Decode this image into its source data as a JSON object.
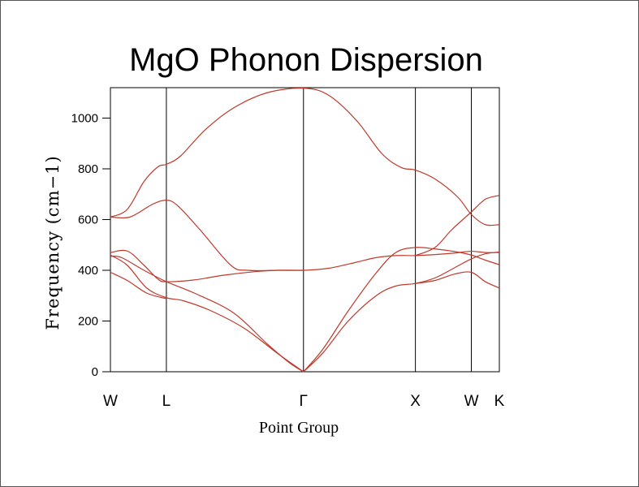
{
  "chart_data": {
    "type": "line",
    "title": "MgO Phonon Dispersion",
    "xlabel": "Point Group",
    "ylabel": "Frequency (cm−1)",
    "ylim": [
      0,
      1120
    ],
    "yticks": [
      "0",
      "200",
      "400",
      "600",
      "800",
      "1000"
    ],
    "ytick_values": [
      0,
      200,
      400,
      600,
      800,
      1000
    ],
    "grid": false,
    "line_color": "#c0392b",
    "high_symmetry_points": [
      {
        "label": "W",
        "x": 0.0
      },
      {
        "label": "L",
        "x": 1.0
      },
      {
        "label": "Γ",
        "x": 3.45
      },
      {
        "label": "X",
        "x": 5.45
      },
      {
        "label": "W",
        "x": 6.45
      },
      {
        "label": "K",
        "x": 6.95
      }
    ],
    "series": [
      {
        "values": [
          [
            0.0,
            610
          ],
          [
            0.3,
            640
          ],
          [
            0.6,
            750
          ],
          [
            0.85,
            808
          ],
          [
            1.0,
            818
          ],
          [
            1.25,
            850
          ],
          [
            1.7,
            955
          ],
          [
            2.2,
            1040
          ],
          [
            2.8,
            1100
          ],
          [
            3.45,
            1118
          ],
          [
            3.9,
            1090
          ],
          [
            4.4,
            990
          ],
          [
            4.85,
            860
          ],
          [
            5.2,
            805
          ],
          [
            5.45,
            795
          ],
          [
            5.8,
            760
          ],
          [
            6.2,
            690
          ],
          [
            6.45,
            620
          ],
          [
            6.7,
            580
          ],
          [
            6.95,
            580
          ]
        ]
      },
      {
        "values": [
          [
            0.0,
            610
          ],
          [
            0.35,
            610
          ],
          [
            0.75,
            660
          ],
          [
            1.0,
            676
          ],
          [
            1.2,
            655
          ],
          [
            1.6,
            560
          ],
          [
            2.15,
            420
          ],
          [
            2.45,
            400
          ],
          [
            3.0,
            400
          ],
          [
            3.45,
            400
          ],
          [
            3.9,
            408
          ],
          [
            4.4,
            432
          ],
          [
            4.75,
            450
          ],
          [
            5.1,
            458
          ],
          [
            5.45,
            458
          ],
          [
            5.8,
            462
          ],
          [
            6.15,
            468
          ],
          [
            6.45,
            475
          ],
          [
            6.7,
            470
          ],
          [
            6.95,
            470
          ]
        ]
      },
      {
        "values": [
          [
            0.0,
            470
          ],
          [
            0.3,
            476
          ],
          [
            0.6,
            420
          ],
          [
            0.85,
            365
          ],
          [
            1.0,
            355
          ],
          [
            1.5,
            362
          ],
          [
            2.0,
            380
          ],
          [
            2.6,
            395
          ],
          [
            3.0,
            400
          ],
          [
            3.45,
            400
          ]
        ]
      },
      {
        "values": [
          [
            0.0,
            455
          ],
          [
            0.2,
            450
          ],
          [
            0.6,
            400
          ],
          [
            1.0,
            355
          ],
          [
            1.5,
            310
          ],
          [
            2.2,
            232
          ],
          [
            2.8,
            110
          ],
          [
            3.2,
            35
          ],
          [
            3.45,
            0
          ]
        ]
      },
      {
        "values": [
          [
            0.0,
            460
          ],
          [
            0.3,
            420
          ],
          [
            0.65,
            330
          ],
          [
            1.0,
            292
          ],
          [
            1.3,
            280
          ],
          [
            1.8,
            240
          ],
          [
            2.4,
            170
          ],
          [
            3.0,
            70
          ],
          [
            3.45,
            0
          ]
        ]
      },
      {
        "values": [
          [
            0.0,
            392
          ],
          [
            0.3,
            360
          ],
          [
            0.65,
            310
          ],
          [
            1.0,
            288
          ]
        ]
      },
      {
        "values": [
          [
            3.45,
            0
          ],
          [
            3.8,
            75
          ],
          [
            4.25,
            200
          ],
          [
            4.75,
            300
          ],
          [
            5.1,
            338
          ],
          [
            5.45,
            348
          ],
          [
            5.8,
            370
          ],
          [
            6.15,
            410
          ],
          [
            6.45,
            445
          ],
          [
            6.7,
            465
          ],
          [
            6.95,
            472
          ]
        ]
      },
      {
        "values": [
          [
            3.45,
            0
          ],
          [
            3.8,
            90
          ],
          [
            4.25,
            240
          ],
          [
            4.75,
            390
          ],
          [
            5.1,
            470
          ],
          [
            5.45,
            490
          ],
          [
            5.8,
            484
          ],
          [
            6.15,
            474
          ],
          [
            6.45,
            460
          ],
          [
            6.7,
            440
          ],
          [
            6.95,
            422
          ]
        ]
      },
      {
        "values": [
          [
            5.45,
            348
          ],
          [
            5.8,
            360
          ],
          [
            6.15,
            385
          ],
          [
            6.45,
            392
          ],
          [
            6.7,
            355
          ],
          [
            6.95,
            330
          ]
        ]
      },
      {
        "values": [
          [
            5.45,
            458
          ],
          [
            5.8,
            490
          ],
          [
            6.1,
            560
          ],
          [
            6.45,
            630
          ],
          [
            6.7,
            680
          ],
          [
            6.95,
            695
          ]
        ]
      }
    ]
  }
}
